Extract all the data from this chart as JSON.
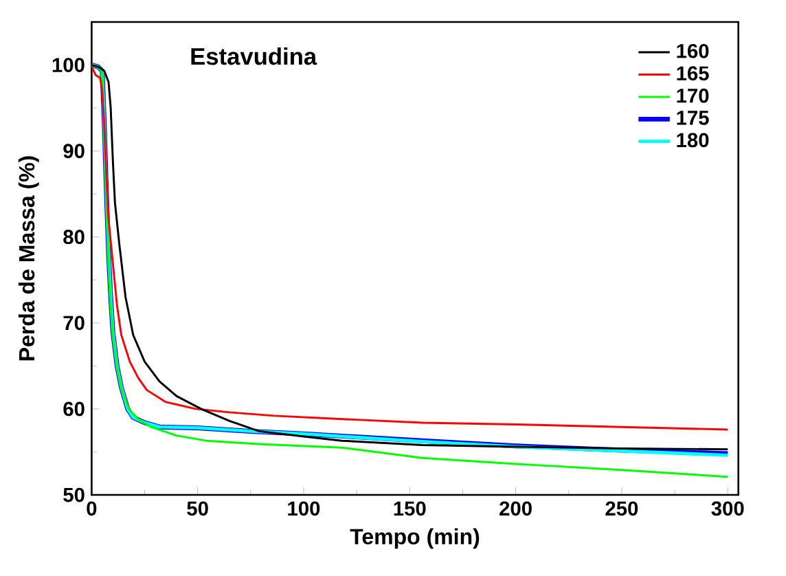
{
  "chart_data": {
    "type": "line",
    "title": "Estavudina",
    "xlabel": "Tempo (min)",
    "ylabel": "Perda de Massa (%)",
    "xlim": [
      0,
      305
    ],
    "ylim": [
      50,
      105
    ],
    "xticks": [
      0,
      50,
      100,
      150,
      200,
      250,
      300
    ],
    "yticks": [
      50,
      60,
      70,
      80,
      90,
      100
    ],
    "legend": "top right",
    "grid": false,
    "marker": "none",
    "line_style": "solid",
    "series": [
      {
        "name": "160",
        "color": "#000000",
        "x": [
          0,
          3,
          6,
          8,
          9,
          10,
          11,
          13,
          16,
          19.6,
          25,
          32,
          40,
          51.6,
          65,
          79,
          100,
          118,
          156,
          200,
          250,
          300
        ],
        "values": [
          100,
          99.8,
          99.3,
          98,
          95,
          89,
          84,
          79.3,
          73,
          68.6,
          65.5,
          63.2,
          61.5,
          60,
          58.6,
          57.4,
          56.8,
          56.3,
          55.8,
          55.6,
          55.4,
          55.3
        ]
      },
      {
        "name": "165",
        "color": "#ff0000",
        "x": [
          0,
          2,
          4,
          5,
          6,
          7,
          8,
          10,
          12,
          14,
          18,
          22,
          26,
          35,
          49,
          65,
          86,
          120,
          156,
          200,
          250,
          300
        ],
        "values": [
          99.8,
          98.8,
          98.5,
          97,
          93,
          87,
          82,
          77,
          72,
          68.6,
          65.5,
          63.6,
          62.2,
          60.8,
          60,
          59.6,
          59.2,
          58.8,
          58.4,
          58.2,
          57.9,
          57.6
        ]
      },
      {
        "name": "170",
        "color": "#00ff00",
        "x": [
          0,
          3,
          5,
          6,
          7,
          7.7,
          8.5,
          10,
          12,
          14,
          17.5,
          22,
          28,
          40,
          54,
          80,
          118,
          156,
          200,
          250,
          300
        ],
        "values": [
          100,
          99.7,
          99.2,
          92,
          84,
          79.3,
          74,
          68.6,
          65,
          62.3,
          60,
          58.8,
          57.9,
          56.9,
          56.3,
          55.9,
          55.5,
          54.3,
          53.6,
          52.9,
          52.1
        ]
      },
      {
        "name": "175",
        "color": "#0000ff",
        "x": [
          0,
          3,
          5,
          6,
          7,
          8,
          9,
          10,
          12,
          14,
          17,
          19.6,
          25,
          32,
          50,
          75,
          100,
          156,
          200,
          250,
          300
        ],
        "values": [
          100,
          99.8,
          99.3,
          93,
          85,
          78,
          73,
          69,
          65,
          62.5,
          60,
          59,
          58.4,
          57.9,
          57.8,
          57.4,
          57.1,
          56.3,
          55.7,
          55.2,
          54.8
        ]
      },
      {
        "name": "180",
        "color": "#00ffff",
        "x": [
          0,
          3,
          5,
          6,
          7,
          8,
          9,
          10,
          12,
          14,
          17,
          19.6,
          25,
          32,
          50,
          75,
          100,
          156,
          200,
          250,
          300
        ],
        "values": [
          100,
          99.8,
          99.3,
          93,
          85,
          78,
          73,
          69,
          65,
          62.5,
          60,
          59,
          58.4,
          57.9,
          57.8,
          57.4,
          57.1,
          56.2,
          55.6,
          55.1,
          54.6
        ]
      }
    ]
  }
}
